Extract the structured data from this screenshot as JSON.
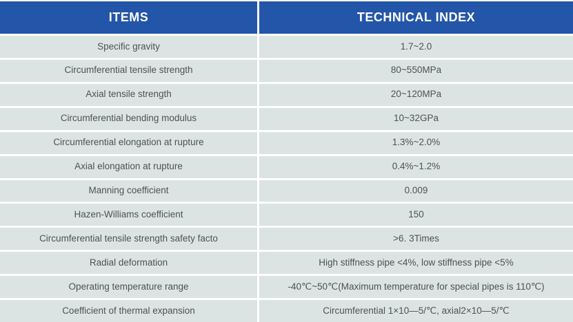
{
  "colors": {
    "header_bg": "#2355A9",
    "header_text": "#FFFFFF",
    "row_bg": "#DBE4E2",
    "row_text": "#4E5254",
    "separator": "#FFFFFF"
  },
  "table": {
    "headers": {
      "items": "ITEMS",
      "index": "TECHNICAL INDEX"
    },
    "rows": [
      {
        "item": "Specific gravity",
        "value": "1.7~2.0"
      },
      {
        "item": "Circumferential tensile strength",
        "value": "80~550MPa"
      },
      {
        "item": "Axial tensile strength",
        "value": "20~120MPa"
      },
      {
        "item": "Circumferential bending modulus",
        "value": "10~32GPa"
      },
      {
        "item": "Circumferential elongation at rupture",
        "value": "1.3%~2.0%"
      },
      {
        "item": "Axial elongation at rupture",
        "value": "0.4%~1.2%"
      },
      {
        "item": "Manning coefficient",
        "value": "0.009"
      },
      {
        "item": "Hazen-Williams coefficient",
        "value": "150"
      },
      {
        "item": "Circumferential tensile strength safety facto",
        "value": ">6. 3Times"
      },
      {
        "item": "Radial deformation",
        "value": "High stiffness pipe <4%, low stiffness pipe <5%"
      },
      {
        "item": "Operating temperature range",
        "value": "-40℃~50℃(Maximum temperature for special pipes is 110℃)"
      },
      {
        "item": "Coefficient of thermal expansion",
        "value": "Circumferential 1×10—5/℃, axial2×10—5/℃"
      }
    ]
  }
}
